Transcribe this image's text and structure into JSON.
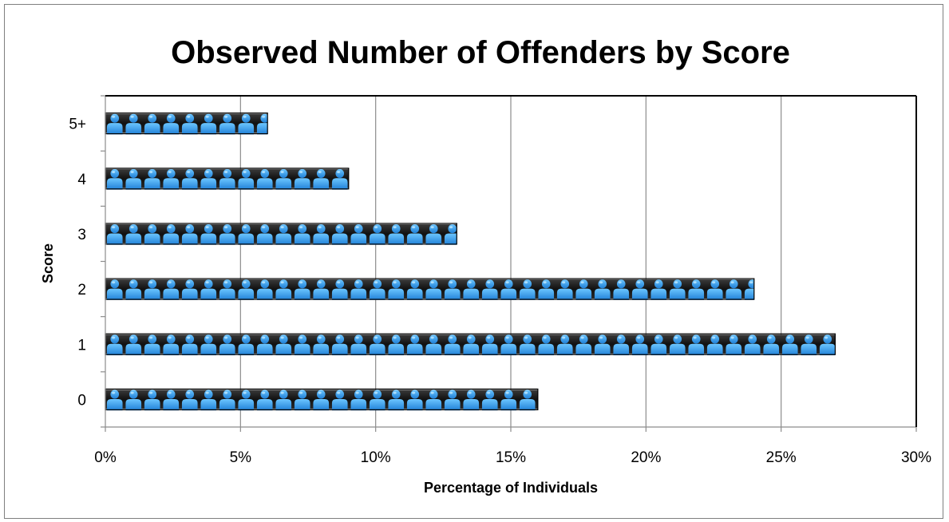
{
  "chart_data": {
    "type": "bar",
    "orientation": "horizontal",
    "title": "Observed Number of Offenders by Score",
    "xlabel": "Percentage of Individuals",
    "ylabel": "Score",
    "categories": [
      "0",
      "1",
      "2",
      "3",
      "4",
      "5+"
    ],
    "values": [
      16,
      27,
      24,
      13,
      9,
      6
    ],
    "xlim": [
      0,
      30
    ],
    "xticks": [
      0,
      5,
      10,
      15,
      20,
      25,
      30
    ],
    "xtick_labels": [
      "0%",
      "5%",
      "10%",
      "15%",
      "20%",
      "25%",
      "30%"
    ],
    "grid": true,
    "bar_fill": "person-icon pictograph",
    "colors": {
      "icon": "#2f8fe6",
      "icon_highlight": "#7fd0ff",
      "band": "#1a1a1a"
    }
  }
}
